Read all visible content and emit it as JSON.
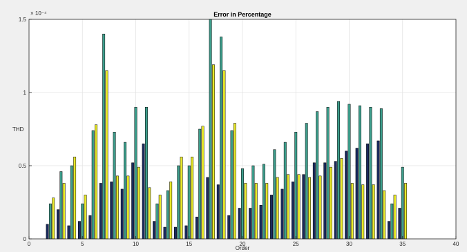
{
  "chart_data": {
    "type": "bar",
    "title": "Error in Percentage",
    "xlabel": "Order",
    "ylabel": "THD",
    "y_exponent_label": "× 10⁻⁴",
    "xlim": [
      0,
      40
    ],
    "ylim": [
      0,
      1.5
    ],
    "x_ticks": [
      0,
      5,
      10,
      15,
      20,
      25,
      30,
      35,
      40
    ],
    "y_ticks": [
      0,
      0.5,
      1,
      1.5
    ],
    "x_tick_labels": [
      "0",
      "5",
      "10",
      "15",
      "20",
      "25",
      "30",
      "35",
      "40"
    ],
    "y_tick_labels": [
      "0",
      "0.5",
      "1",
      "1.5"
    ],
    "grid": true,
    "x": [
      2,
      3,
      4,
      5,
      6,
      7,
      8,
      9,
      10,
      11,
      12,
      13,
      14,
      15,
      16,
      17,
      18,
      19,
      20,
      21,
      22,
      23,
      24,
      25,
      26,
      27,
      28,
      29,
      30,
      31,
      32,
      33,
      34,
      35
    ],
    "series": [
      {
        "color": "#1a2a5e",
        "values": [
          0.1,
          0.2,
          0.09,
          0.12,
          0.16,
          0.38,
          0.39,
          0.34,
          0.52,
          0.65,
          0.12,
          0.08,
          0.08,
          0.09,
          0.15,
          0.42,
          0.37,
          0.16,
          0.21,
          0.21,
          0.23,
          0.3,
          0.34,
          0.39,
          0.44,
          0.52,
          0.52,
          0.53,
          0.6,
          0.62,
          0.65,
          0.67,
          0.12,
          0.21
        ]
      },
      {
        "color": "#3d9e8c",
        "values": [
          0.24,
          0.46,
          0.5,
          0.24,
          0.74,
          1.4,
          0.73,
          0.66,
          0.9,
          0.9,
          0.24,
          0.33,
          0.5,
          0.5,
          0.75,
          1.5,
          1.38,
          0.74,
          0.48,
          0.5,
          0.51,
          0.61,
          0.66,
          0.73,
          0.79,
          0.87,
          0.9,
          0.94,
          0.92,
          0.91,
          0.9,
          0.89,
          0.24,
          0.49
        ]
      },
      {
        "color": "#e8e82a",
        "values": [
          0.28,
          0.38,
          0.56,
          0.3,
          0.78,
          1.15,
          0.43,
          0.43,
          0.49,
          0.35,
          0.3,
          0.39,
          0.56,
          0.56,
          0.77,
          1.19,
          1.15,
          0.79,
          0.38,
          0.38,
          0.38,
          0.42,
          0.44,
          0.44,
          0.42,
          0.43,
          0.49,
          0.55,
          0.38,
          0.37,
          0.37,
          0.33,
          0.3,
          0.38
        ]
      }
    ]
  }
}
